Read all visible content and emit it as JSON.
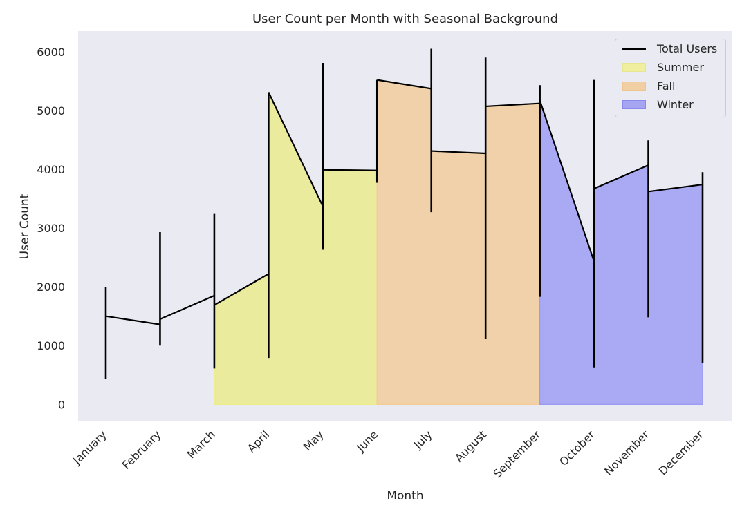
{
  "chart_data": {
    "type": "area",
    "title": "User Count per Month with Seasonal Background",
    "xlabel": "Month",
    "ylabel": "User Count",
    "categories": [
      "January",
      "February",
      "March",
      "April",
      "May",
      "June",
      "July",
      "August",
      "September",
      "October",
      "November",
      "December"
    ],
    "ylim": [
      -290,
      6350
    ],
    "yticks": [
      0,
      1000,
      2000,
      3000,
      4000,
      5000,
      6000
    ],
    "grid": false,
    "legend_position": "top-right",
    "series": [
      {
        "name": "Total Users",
        "type": "line",
        "color": "#000000",
        "segments": [
          {
            "x_from": "January",
            "x_to": "February",
            "y_from": 1500,
            "y_to": 1360
          },
          {
            "x_from": "February",
            "x_to": "March",
            "y_from": 1450,
            "y_to": 1850
          },
          {
            "x_from": "March",
            "x_to": "April",
            "y_from": 1690,
            "y_to": 2220
          },
          {
            "x_from": "April",
            "x_to": "May",
            "y_from": 5310,
            "y_to": 3370
          },
          {
            "x_from": "May",
            "x_to": "June",
            "y_from": 3990,
            "y_to": 3980
          },
          {
            "x_from": "June",
            "x_to": "July",
            "y_from": 5520,
            "y_to": 5370
          },
          {
            "x_from": "July",
            "x_to": "August",
            "y_from": 4310,
            "y_to": 4270
          },
          {
            "x_from": "August",
            "x_to": "September",
            "y_from": 5070,
            "y_to": 5120
          },
          {
            "x_from": "September",
            "x_to": "October",
            "y_from": 5170,
            "y_to": 2430
          },
          {
            "x_from": "October",
            "x_to": "November",
            "y_from": 3670,
            "y_to": 4070
          },
          {
            "x_from": "November",
            "x_to": "December",
            "y_from": 3620,
            "y_to": 3740
          }
        ],
        "error_bars": [
          {
            "x": "January",
            "low": 430,
            "high": 2000
          },
          {
            "x": "February",
            "low": 1000,
            "high": 2930
          },
          {
            "x": "March",
            "low": 610,
            "high": 3240
          },
          {
            "x": "April",
            "low": 790,
            "high": 5310
          },
          {
            "x": "May",
            "low": 2630,
            "high": 5810
          },
          {
            "x": "June",
            "low": 3770,
            "high": 5520
          },
          {
            "x": "July",
            "low": 3270,
            "high": 6050
          },
          {
            "x": "August",
            "low": 1120,
            "high": 5900
          },
          {
            "x": "September",
            "low": 1830,
            "high": 5430
          },
          {
            "x": "October",
            "low": 630,
            "high": 5520
          },
          {
            "x": "November",
            "low": 1480,
            "high": 4490
          },
          {
            "x": "December",
            "low": 700,
            "high": 3950
          }
        ]
      },
      {
        "name": "Summer",
        "type": "area",
        "color": "#ecec8a",
        "points": [
          {
            "x": "March",
            "y": 1690
          },
          {
            "x": "April",
            "y": 2220
          },
          {
            "x": "April",
            "y": 5310
          },
          {
            "x": "May",
            "y": 3370
          },
          {
            "x": "May",
            "y": 3990
          },
          {
            "x": "June",
            "y": 3980
          }
        ]
      },
      {
        "name": "Fall",
        "type": "area",
        "color": "#f3cc98",
        "points": [
          {
            "x": "June",
            "y": 5520
          },
          {
            "x": "July",
            "y": 5370
          },
          {
            "x": "July",
            "y": 4310
          },
          {
            "x": "August",
            "y": 4270
          },
          {
            "x": "August",
            "y": 5070
          },
          {
            "x": "September",
            "y": 5120
          }
        ]
      },
      {
        "name": "Winter",
        "type": "area",
        "color": "#9c9cf4",
        "points": [
          {
            "x": "September",
            "y": 5170
          },
          {
            "x": "October",
            "y": 2430
          },
          {
            "x": "October",
            "y": 3670
          },
          {
            "x": "November",
            "y": 4070
          },
          {
            "x": "November",
            "y": 3620
          },
          {
            "x": "December",
            "y": 3740
          }
        ]
      }
    ]
  },
  "legend": {
    "items": [
      {
        "label": "Total Users",
        "kind": "line",
        "color": "#000000"
      },
      {
        "label": "Summer",
        "kind": "patch",
        "color": "#efef9f"
      },
      {
        "label": "Fall",
        "kind": "patch",
        "color": "#f0cfa3"
      },
      {
        "label": "Winter",
        "kind": "patch",
        "color": "#a5a5f2"
      }
    ]
  }
}
